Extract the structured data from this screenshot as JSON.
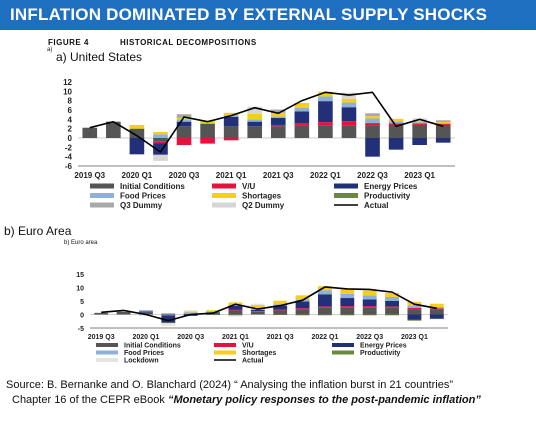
{
  "banner": {
    "title": "INFLATION DOMINATED BY EXTERNAL SUPPLY SHOCKS",
    "bg": "#1f6fc0"
  },
  "figure": {
    "label": "FIGURE 4",
    "title": "HISTORICAL DECOMPOSITIONS"
  },
  "panel_a": {
    "small": "a)",
    "label": "a) United States"
  },
  "panel_b": {
    "label": "b) Euro Area",
    "small": "b) Euro area"
  },
  "source": {
    "line1": "Source: B. Bernanke and O. Blanchard (2024) “ Analysing the inflation burst in 21 countries”",
    "line2_prefix": "Chapter 16 of the CEPR eBook ",
    "line2_em": "“Monetary policy responses to the post-pandemic inflation”"
  },
  "colors": {
    "Initial Conditions": "#555555",
    "V/U": "#e0143c",
    "Energy Prices": "#22307a",
    "Food Prices": "#8fb0d8",
    "Shortages": "#f5cf1a",
    "Productivity": "#6a8a3a",
    "Q3 Dummy": "#a8a8a8",
    "Q2 Dummy": "#d6d6d6",
    "Lockdown": "#e4e4e4",
    "Actual": "#000000"
  },
  "chart_data": [
    {
      "type": "bar",
      "title": "a) United States",
      "ylim": [
        -6,
        12
      ],
      "yticks": [
        -6,
        -4,
        -2,
        0,
        2,
        4,
        6,
        8,
        10,
        12
      ],
      "xtick_labels": [
        "2019 Q3",
        "2020 Q1",
        "2020 Q3",
        "2021 Q1",
        "2021 Q3",
        "2022 Q1",
        "2022 Q3",
        "2023 Q1"
      ],
      "categories": [
        "2019 Q3",
        "2019 Q4",
        "2020 Q1",
        "2020 Q2",
        "2020 Q3",
        "2020 Q4",
        "2021 Q1",
        "2021 Q2",
        "2021 Q3",
        "2021 Q4",
        "2022 Q1",
        "2022 Q2",
        "2022 Q3",
        "2022 Q4",
        "2023 Q1",
        "2023 Q2"
      ],
      "legend": [
        "Initial Conditions",
        "V/U",
        "Energy Prices",
        "Food Prices",
        "Shortages",
        "Productivity",
        "Q3 Dummy",
        "Q2 Dummy",
        "Actual"
      ],
      "series": [
        {
          "name": "Initial Conditions",
          "values": [
            2.2,
            3.5,
            2.0,
            -0.8,
            2.5,
            3.0,
            2.5,
            2.5,
            2.5,
            2.7,
            2.6,
            2.6,
            2.7,
            2.8,
            2.8,
            2.8
          ]
        },
        {
          "name": "V/U",
          "values": [
            0,
            0,
            0,
            -0.3,
            -1.5,
            -1.2,
            -0.5,
            0,
            0.3,
            0.5,
            0.8,
            1.0,
            0.5,
            0.3,
            0.3,
            0.2
          ]
        },
        {
          "name": "Energy Prices",
          "values": [
            0,
            0,
            -3.5,
            -2.5,
            1.0,
            0,
            2.0,
            1.0,
            1.5,
            2.5,
            4.5,
            3.0,
            -4.0,
            -2.5,
            -1.5,
            -1.0
          ]
        },
        {
          "name": "Food Prices",
          "values": [
            0,
            0,
            0,
            0.8,
            0.5,
            0.2,
            0.4,
            0.5,
            0.3,
            0.8,
            1.0,
            1.0,
            1.0,
            0.5,
            0.3,
            0.2
          ]
        },
        {
          "name": "Shortages",
          "values": [
            0,
            0,
            0.8,
            0.5,
            0.3,
            0.5,
            0.5,
            1.2,
            0.8,
            1.0,
            1.0,
            0.8,
            0.5,
            0.5,
            0.3,
            0.2
          ]
        },
        {
          "name": "Productivity",
          "values": [
            0,
            0,
            0,
            0,
            0,
            0,
            0,
            0,
            0,
            0,
            0,
            0,
            0,
            0,
            0,
            0
          ]
        },
        {
          "name": "Q3 Dummy",
          "values": [
            0,
            0,
            0,
            0,
            0.8,
            0,
            0,
            0,
            0.7,
            0,
            0,
            0,
            0.6,
            0,
            0,
            0.4
          ]
        },
        {
          "name": "Q2 Dummy",
          "values": [
            0,
            0,
            0,
            -1.3,
            0,
            0,
            0,
            1.5,
            0,
            0,
            0,
            1.3,
            0,
            0,
            0.5,
            0
          ]
        },
        {
          "name": "Actual",
          "values": [
            2.2,
            3.5,
            0.5,
            -3.0,
            4.5,
            3.5,
            4.8,
            6.5,
            5.3,
            8.0,
            9.8,
            9.2,
            9.8,
            2.5,
            4.0,
            2.5
          ]
        }
      ]
    },
    {
      "type": "bar",
      "title": "b) Euro area",
      "ylim": [
        -5,
        15
      ],
      "yticks": [
        -5,
        0,
        5,
        10,
        15
      ],
      "xtick_labels": [
        "2019 Q3",
        "2020 Q1",
        "2020 Q3",
        "2021 Q1",
        "2021 Q3",
        "2022 Q1",
        "2022 Q3",
        "2023 Q1"
      ],
      "categories": [
        "2019 Q3",
        "2019 Q4",
        "2020 Q1",
        "2020 Q2",
        "2020 Q3",
        "2020 Q4",
        "2021 Q1",
        "2021 Q2",
        "2021 Q3",
        "2021 Q4",
        "2022 Q1",
        "2022 Q2",
        "2022 Q3",
        "2022 Q4",
        "2023 Q1",
        "2023 Q2"
      ],
      "legend": [
        "Initial Conditions",
        "V/U",
        "Energy Prices",
        "Food Prices",
        "Shortages",
        "Productivity",
        "Lockdown",
        "Actual"
      ],
      "series": [
        {
          "name": "Initial Conditions",
          "values": [
            0.6,
            1.0,
            0.8,
            -0.5,
            0.3,
            0.5,
            1.5,
            1.0,
            1.5,
            2.0,
            2.5,
            2.5,
            2.5,
            2.5,
            2.0,
            2.0
          ]
        },
        {
          "name": "V/U",
          "values": [
            0,
            0,
            0,
            0,
            0,
            0,
            0.2,
            0.2,
            0.3,
            0.3,
            0.5,
            0.6,
            0.6,
            0.5,
            0.4,
            0.3
          ]
        },
        {
          "name": "Energy Prices",
          "values": [
            0,
            0,
            0.3,
            -2.5,
            -0.5,
            0.3,
            1.5,
            0.5,
            1.5,
            2.5,
            4.5,
            3.0,
            2.5,
            2.0,
            -2.0,
            -1.5
          ]
        },
        {
          "name": "Food Prices",
          "values": [
            0,
            0,
            0.5,
            0.5,
            0.5,
            0.3,
            0.3,
            0.3,
            0.5,
            0.8,
            1.5,
            1.5,
            1.5,
            1.5,
            1.0,
            0.5
          ]
        },
        {
          "name": "Shortages",
          "values": [
            0,
            0,
            0,
            0,
            0.3,
            0.5,
            1.0,
            1.5,
            1.3,
            1.5,
            1.5,
            1.8,
            1.8,
            1.5,
            1.3,
            1.2
          ]
        },
        {
          "name": "Productivity",
          "values": [
            0,
            0,
            0,
            -0.2,
            0,
            -0.2,
            -0.3,
            0,
            -0.2,
            -0.3,
            -0.3,
            -0.3,
            -0.3,
            -0.3,
            -0.3,
            -0.2
          ]
        },
        {
          "name": "Lockdown",
          "values": [
            0,
            0,
            -0.5,
            -1.0,
            0.5,
            0,
            -0.5,
            0.5,
            0,
            0,
            0,
            0,
            0,
            0,
            0,
            0
          ]
        },
        {
          "name": "Actual",
          "values": [
            0.8,
            1.5,
            0.0,
            -2.3,
            0.0,
            0.5,
            3.8,
            2.0,
            3.3,
            5.3,
            10.2,
            9.5,
            9.3,
            8.3,
            3.8,
            2.3
          ]
        }
      ]
    }
  ]
}
